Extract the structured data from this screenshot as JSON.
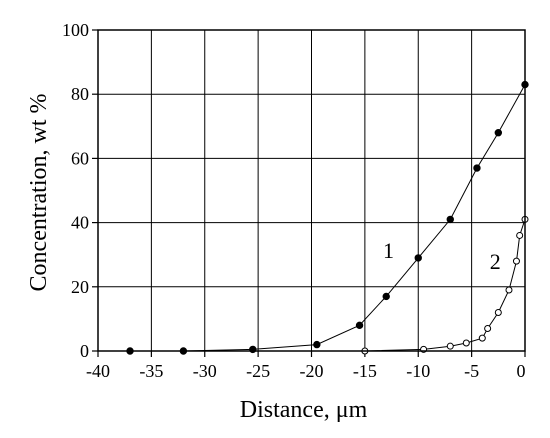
{
  "chart_data": {
    "type": "scatter",
    "xlabel": "Distance, μm",
    "ylabel": "Concentration, wt %",
    "xlim": [
      -40,
      0
    ],
    "ylim": [
      0,
      100
    ],
    "x_ticks": [
      -40,
      -35,
      -30,
      -25,
      -20,
      -15,
      -10,
      -5,
      0
    ],
    "y_ticks": [
      0,
      20,
      40,
      60,
      80,
      100
    ],
    "grid": true,
    "series": [
      {
        "name": "1",
        "marker": "filled-circle",
        "color": "#000000",
        "x": [
          -37,
          -32,
          -25.5,
          -19.5,
          -15.5,
          -13,
          -10,
          -7,
          -4.5,
          -2.5,
          0
        ],
        "y": [
          0,
          0,
          0.5,
          2,
          8,
          17,
          29,
          41,
          57,
          68,
          83
        ]
      },
      {
        "name": "2",
        "marker": "open-circle",
        "color": "#000000",
        "x": [
          -15,
          -9.5,
          -7,
          -5.5,
          -4,
          -3.5,
          -2.5,
          -1.5,
          -0.8,
          -0.5,
          0
        ],
        "y": [
          0,
          0.5,
          1.5,
          2.5,
          4,
          7,
          12,
          19,
          28,
          36,
          41
        ]
      }
    ]
  }
}
